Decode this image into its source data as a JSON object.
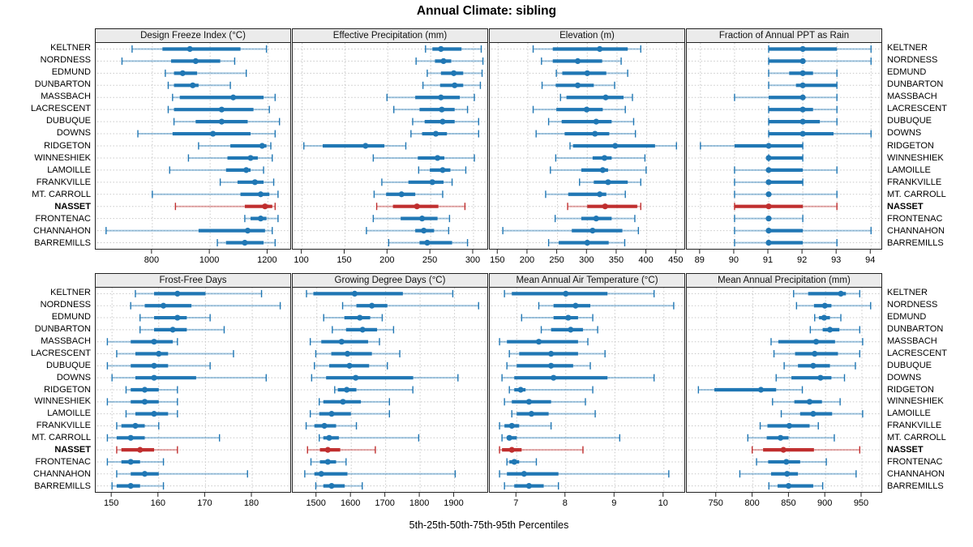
{
  "chart": {
    "title": "Annual Climate: sibling",
    "caption": "5th-25th-50th-75th-95th Percentiles"
  },
  "colors": {
    "normal": "#2077b4",
    "normal_light": "rgba(32,119,180,0.42)",
    "highlight": "#c02f2f",
    "highlight_light": "rgba(192,47,47,0.42)",
    "grid": "#c8c8c8",
    "header_bg": "#ebebeb",
    "border": "#222222"
  },
  "sites": [
    "KELTNER",
    "NORDNESS",
    "EDMUND",
    "DUNBARTON",
    "MASSBACH",
    "LACRESCENT",
    "DUBUQUE",
    "DOWNS",
    "RIDGETON",
    "WINNESHIEK",
    "LAMOILLE",
    "FRANKVILLE",
    "MT. CARROLL",
    "NASSET",
    "FRONTENAC",
    "CHANNAHON",
    "BARREMILLS"
  ],
  "highlight_site": "NASSET",
  "chart_data": {
    "type": "dot-whisker-percentile-trellis",
    "percentiles": [
      "5th",
      "25th",
      "50th",
      "75th",
      "95th"
    ],
    "rows_are_sites": true,
    "legend_position": "none",
    "grid": "dotted",
    "panels": [
      {
        "title": "Design Freeze Index (°C)",
        "xlim": [
          604,
          1283
        ],
        "ticks": [
          800,
          1000,
          1200
        ],
        "values": [
          [
            730,
            835,
            930,
            1105,
            1195
          ],
          [
            695,
            865,
            950,
            1035,
            1085
          ],
          [
            845,
            875,
            905,
            955,
            1125
          ],
          [
            855,
            875,
            940,
            960,
            1070
          ],
          [
            870,
            895,
            1080,
            1185,
            1225
          ],
          [
            855,
            875,
            1040,
            1150,
            1205
          ],
          [
            875,
            950,
            1040,
            1130,
            1240
          ],
          [
            750,
            870,
            1010,
            1140,
            1225
          ],
          [
            960,
            1070,
            1180,
            1195,
            1210
          ],
          [
            925,
            1060,
            1140,
            1165,
            1215
          ],
          [
            860,
            1055,
            1125,
            1140,
            1185
          ],
          [
            1035,
            1095,
            1155,
            1185,
            1220
          ],
          [
            800,
            1105,
            1175,
            1205,
            1235
          ],
          [
            880,
            1120,
            1190,
            1215,
            1225
          ],
          [
            1120,
            1140,
            1175,
            1195,
            1235
          ],
          [
            640,
            960,
            1130,
            1190,
            1215
          ],
          [
            1025,
            1055,
            1120,
            1185,
            1225
          ]
        ]
      },
      {
        "title": "Effective Precipitation (mm)",
        "xlim": [
          89,
          318
        ],
        "ticks": [
          100,
          150,
          200,
          250,
          300
        ],
        "values": [
          [
            244,
            252,
            262,
            286,
            309
          ],
          [
            233,
            255,
            265,
            274,
            311
          ],
          [
            246,
            262,
            277,
            288,
            310
          ],
          [
            241,
            261,
            278,
            288,
            308
          ],
          [
            199,
            232,
            262,
            284,
            301
          ],
          [
            207,
            237,
            263,
            278,
            293
          ],
          [
            229,
            243,
            264,
            278,
            306
          ],
          [
            227,
            240,
            256,
            269,
            306
          ],
          [
            102,
            124,
            174,
            196,
            221
          ],
          [
            183,
            235,
            258,
            266,
            301
          ],
          [
            236,
            249,
            264,
            273,
            291
          ],
          [
            193,
            224,
            252,
            265,
            275
          ],
          [
            184,
            198,
            216,
            232,
            264
          ],
          [
            187,
            206,
            234,
            259,
            290
          ],
          [
            183,
            215,
            240,
            258,
            272
          ],
          [
            175,
            232,
            242,
            254,
            271
          ],
          [
            201,
            237,
            246,
            275,
            293
          ]
        ]
      },
      {
        "title": "Elevation (m)",
        "xlim": [
          136,
          466
        ],
        "ticks": [
          150,
          200,
          250,
          300,
          350,
          400,
          450
        ],
        "values": [
          [
            209,
            242,
            321,
            368,
            390
          ],
          [
            223,
            242,
            284,
            325,
            357
          ],
          [
            248,
            258,
            300,
            332,
            368
          ],
          [
            224,
            247,
            284,
            311,
            346
          ],
          [
            255,
            265,
            331,
            361,
            376
          ],
          [
            209,
            248,
            299,
            326,
            364
          ],
          [
            235,
            257,
            315,
            341,
            378
          ],
          [
            214,
            262,
            313,
            337,
            381
          ],
          [
            271,
            276,
            347,
            414,
            450
          ],
          [
            247,
            309,
            329,
            341,
            397
          ],
          [
            238,
            290,
            326,
            335,
            399
          ],
          [
            287,
            311,
            335,
            368,
            390
          ],
          [
            230,
            268,
            321,
            332,
            364
          ],
          [
            267,
            300,
            330,
            384,
            390
          ],
          [
            246,
            290,
            315,
            341,
            380
          ],
          [
            158,
            274,
            309,
            359,
            386
          ],
          [
            235,
            252,
            300,
            336,
            363
          ]
        ]
      },
      {
        "title": "Fraction of Annual PPT as Rain",
        "xlim": [
          88.6,
          94.35
        ],
        "ticks": [
          89,
          90,
          91,
          92,
          93,
          94
        ],
        "values": [
          [
            91,
            91,
            92,
            93,
            94
          ],
          [
            91,
            91,
            92,
            92,
            94
          ],
          [
            91,
            91.6,
            92,
            92.3,
            93
          ],
          [
            91,
            91.8,
            92,
            93,
            93
          ],
          [
            90,
            91,
            92,
            92,
            93
          ],
          [
            91,
            91,
            92,
            92.3,
            93
          ],
          [
            91,
            91,
            92,
            92.5,
            93
          ],
          [
            91,
            91,
            92,
            92.9,
            94
          ],
          [
            89,
            90,
            91,
            92,
            92
          ],
          [
            91,
            91,
            91,
            92,
            92
          ],
          [
            90,
            91,
            91,
            92,
            93
          ],
          [
            90,
            91,
            91,
            92,
            92
          ],
          [
            90,
            91,
            91,
            91,
            93
          ],
          [
            90,
            90,
            91,
            92,
            93
          ],
          [
            90,
            91,
            91,
            91,
            92
          ],
          [
            90,
            91,
            91,
            92,
            94
          ],
          [
            90,
            91,
            91,
            92,
            93
          ]
        ]
      },
      {
        "title": "Frost-Free Days",
        "xlim": [
          146.5,
          188.5
        ],
        "ticks": [
          150,
          160,
          170,
          180
        ],
        "values": [
          [
            155,
            159,
            164,
            170,
            182
          ],
          [
            154,
            157,
            161,
            167,
            186
          ],
          [
            156,
            159,
            164,
            166,
            171
          ],
          [
            156,
            159,
            163,
            166,
            174
          ],
          [
            149,
            154,
            159,
            163,
            164
          ],
          [
            151,
            155,
            160,
            162,
            176
          ],
          [
            149,
            154,
            159,
            162,
            171
          ],
          [
            150,
            155,
            159,
            168,
            183
          ],
          [
            153,
            154,
            157,
            160,
            164
          ],
          [
            149,
            154,
            157,
            160,
            164
          ],
          [
            153,
            155,
            159,
            162,
            164
          ],
          [
            151,
            152,
            155,
            157,
            160
          ],
          [
            149,
            151,
            154,
            157,
            173
          ],
          [
            151,
            152,
            156,
            159,
            164
          ],
          [
            149,
            152,
            154,
            156,
            161
          ],
          [
            151,
            154,
            157,
            160,
            179
          ],
          [
            150,
            151,
            154,
            156,
            161
          ]
        ]
      },
      {
        "title": "Growing Degree Days (°C)",
        "xlim": [
          1430,
          2000
        ],
        "ticks": [
          1500,
          1600,
          1700,
          1800,
          1900
        ],
        "values": [
          [
            1470,
            1490,
            1610,
            1750,
            1895
          ],
          [
            1575,
            1615,
            1660,
            1705,
            1970
          ],
          [
            1520,
            1580,
            1625,
            1655,
            1690
          ],
          [
            1545,
            1585,
            1633,
            1675,
            1723
          ],
          [
            1481,
            1513,
            1572,
            1649,
            1682
          ],
          [
            1497,
            1542,
            1589,
            1660,
            1741
          ],
          [
            1493,
            1536,
            1595,
            1652,
            1705
          ],
          [
            1485,
            1527,
            1613,
            1780,
            1910
          ],
          [
            1552,
            1561,
            1587,
            1615,
            1779
          ],
          [
            1507,
            1519,
            1576,
            1628,
            1711
          ],
          [
            1481,
            1507,
            1543,
            1599,
            1711
          ],
          [
            1469,
            1493,
            1522,
            1556,
            1615
          ],
          [
            1507,
            1519,
            1536,
            1564,
            1796
          ],
          [
            1473,
            1509,
            1532,
            1568,
            1670
          ],
          [
            1483,
            1509,
            1532,
            1556,
            1585
          ],
          [
            1465,
            1493,
            1513,
            1589,
            1902
          ],
          [
            1497,
            1519,
            1543,
            1581,
            1632
          ]
        ]
      },
      {
        "title": "Mean Annual Air Temperature (°C)",
        "xlim": [
          6.45,
          10.45
        ],
        "ticks": [
          7,
          8,
          9,
          10
        ],
        "values": [
          [
            6.75,
            6.9,
            8.0,
            8.85,
            9.8
          ],
          [
            7.45,
            7.75,
            8.2,
            8.5,
            10.2
          ],
          [
            7.1,
            7.75,
            8.05,
            8.25,
            8.55
          ],
          [
            7.5,
            7.7,
            8.1,
            8.35,
            8.65
          ],
          [
            6.65,
            6.8,
            7.45,
            8.25,
            8.45
          ],
          [
            6.85,
            7.05,
            7.7,
            8.25,
            8.8
          ],
          [
            6.8,
            7.0,
            7.7,
            8.15,
            8.5
          ],
          [
            6.7,
            6.95,
            7.75,
            8.85,
            9.8
          ],
          [
            6.85,
            6.95,
            7.08,
            7.18,
            8.55
          ],
          [
            6.75,
            6.9,
            7.25,
            7.7,
            8.4
          ],
          [
            6.9,
            7.0,
            7.3,
            7.65,
            8.6
          ],
          [
            6.65,
            6.75,
            6.9,
            7.05,
            7.7
          ],
          [
            6.7,
            6.8,
            6.85,
            7.0,
            9.1
          ],
          [
            6.65,
            6.7,
            6.9,
            7.1,
            8.35
          ],
          [
            6.8,
            6.85,
            6.95,
            7.05,
            7.4
          ],
          [
            6.65,
            6.8,
            7.15,
            7.85,
            10.1
          ],
          [
            6.75,
            6.95,
            7.25,
            7.55,
            7.85
          ]
        ]
      },
      {
        "title": "Mean Annual Precipitation (mm)",
        "xlim": [
          709,
          979
        ],
        "ticks": [
          750,
          800,
          850,
          900,
          950
        ],
        "values": [
          [
            856,
            876,
            921,
            928,
            947
          ],
          [
            860,
            884,
            899,
            908,
            962
          ],
          [
            885,
            891,
            898,
            906,
            921
          ],
          [
            879,
            896,
            906,
            919,
            947
          ],
          [
            825,
            835,
            887,
            913,
            951
          ],
          [
            829,
            858,
            885,
            917,
            947
          ],
          [
            843,
            862,
            883,
            906,
            941
          ],
          [
            832,
            853,
            893,
            908,
            926
          ],
          [
            725,
            747,
            811,
            832,
            868
          ],
          [
            827,
            857,
            878,
            895,
            920
          ],
          [
            839,
            865,
            883,
            909,
            951
          ],
          [
            810,
            820,
            850,
            878,
            890
          ],
          [
            793,
            819,
            838,
            849,
            912
          ],
          [
            799,
            814,
            842,
            884,
            947
          ],
          [
            805,
            821,
            846,
            865,
            901
          ],
          [
            782,
            825,
            847,
            862,
            942
          ],
          [
            822,
            834,
            849,
            883,
            896
          ]
        ]
      }
    ]
  }
}
